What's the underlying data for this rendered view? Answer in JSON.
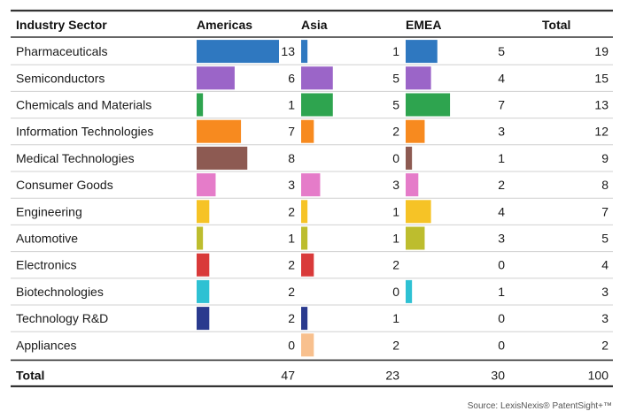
{
  "chart_data": {
    "type": "table",
    "title": "",
    "columns": [
      "Industry Sector",
      "Americas",
      "Asia",
      "EMEA",
      "Total"
    ],
    "regions": [
      "Americas",
      "Asia",
      "EMEA"
    ],
    "rows": [
      {
        "sector": "Pharmaceuticals",
        "americas": 13,
        "asia": 1,
        "emea": 5,
        "total": 19,
        "color": "#2f78c0"
      },
      {
        "sector": "Semiconductors",
        "americas": 6,
        "asia": 5,
        "emea": 4,
        "total": 15,
        "color": "#9b65c8"
      },
      {
        "sector": "Chemicals and Materials",
        "americas": 1,
        "asia": 5,
        "emea": 7,
        "total": 13,
        "color": "#2ea44f"
      },
      {
        "sector": "Information Technologies",
        "americas": 7,
        "asia": 2,
        "emea": 3,
        "total": 12,
        "color": "#f78a1f"
      },
      {
        "sector": "Medical Technologies",
        "americas": 8,
        "asia": 0,
        "emea": 1,
        "total": 9,
        "color": "#8d5a52"
      },
      {
        "sector": "Consumer Goods",
        "americas": 3,
        "asia": 3,
        "emea": 2,
        "total": 8,
        "color": "#e57cc9"
      },
      {
        "sector": "Engineering",
        "americas": 2,
        "asia": 1,
        "emea": 4,
        "total": 7,
        "color": "#f6c326"
      },
      {
        "sector": "Automotive",
        "americas": 1,
        "asia": 1,
        "emea": 3,
        "total": 5,
        "color": "#bdbd2e"
      },
      {
        "sector": "Electronics",
        "americas": 2,
        "asia": 2,
        "emea": 0,
        "total": 4,
        "color": "#d93a3a"
      },
      {
        "sector": "Biotechnologies",
        "americas": 2,
        "asia": 0,
        "emea": 1,
        "total": 3,
        "color": "#2ec1d3"
      },
      {
        "sector": "Technology R&D",
        "americas": 2,
        "asia": 1,
        "emea": 0,
        "total": 3,
        "color": "#2a3a8e"
      },
      {
        "sector": "Appliances",
        "americas": 0,
        "asia": 2,
        "emea": 0,
        "total": 2,
        "color": "#f8c08e"
      }
    ],
    "totals": {
      "label": "Total",
      "americas": 47,
      "asia": 23,
      "emea": 30,
      "total": 100
    },
    "source": "Source: LexisNexis® PatentSight+™"
  }
}
